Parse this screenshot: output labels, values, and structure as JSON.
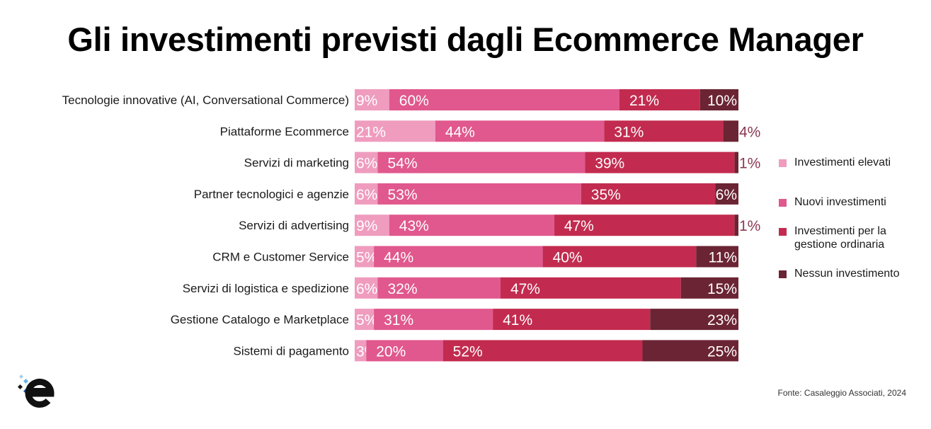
{
  "title": "Gli investimenti previsti dagli Ecommerce Manager",
  "source": "Fonte: Casaleggio Associati, 2024",
  "colors": {
    "investimenti_elevati": "#ef9cbf",
    "nuovi_investimenti": "#e0588d",
    "gestione_ordinaria": "#c22b4f",
    "nessun_investimento": "#6b2433"
  },
  "legend": [
    {
      "label": "Investimenti elevati",
      "color": "#ef9cbf"
    },
    {
      "label": "Nuovi investimenti",
      "color": "#e0588d"
    },
    {
      "label": "Investimenti per la gestione ordinaria",
      "color": "#c22b4f"
    },
    {
      "label": "Nessun investimento",
      "color": "#6b2433"
    }
  ],
  "chart_data": {
    "type": "bar",
    "orientation": "horizontal",
    "stacked": true,
    "normalized_percent": true,
    "categories": [
      "Tecnologie innovative (AI, Conversational Commerce)",
      "Piattaforme Ecommerce",
      "Servizi di marketing",
      "Partner tecnologici e agenzie",
      "Servizi di advertising",
      "CRM e Customer Service",
      "Servizi di logistica e spedizione",
      "Gestione Catalogo e Marketplace",
      "Sistemi di pagamento"
    ],
    "series": [
      {
        "name": "Investimenti elevati",
        "color": "#ef9cbf",
        "values": [
          9,
          21,
          6,
          6,
          9,
          5,
          6,
          5,
          3
        ]
      },
      {
        "name": "Nuovi investimenti",
        "color": "#e0588d",
        "values": [
          60,
          44,
          54,
          53,
          43,
          44,
          32,
          31,
          20
        ]
      },
      {
        "name": "Investimenti per la gestione ordinaria",
        "color": "#c22b4f",
        "values": [
          21,
          31,
          39,
          35,
          47,
          40,
          47,
          41,
          52
        ]
      },
      {
        "name": "Nessun investimento",
        "color": "#6b2433",
        "values": [
          10,
          4,
          1,
          6,
          1,
          11,
          15,
          23,
          25
        ]
      }
    ],
    "data_label_suffix": "%",
    "legend_position": "right",
    "grid": false
  }
}
